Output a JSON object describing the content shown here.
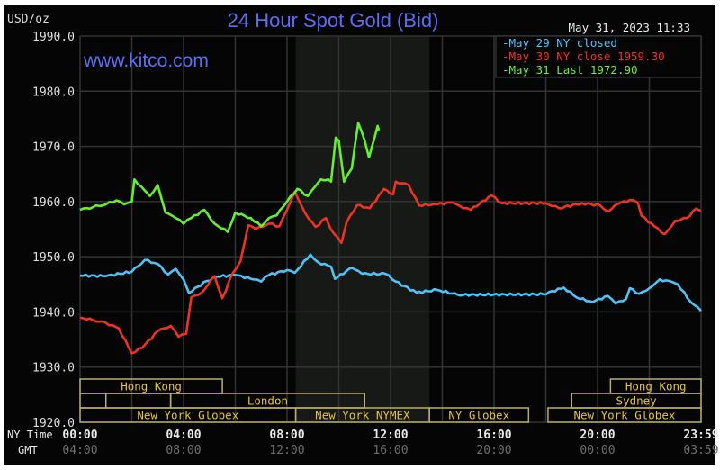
{
  "chart_data": {
    "type": "line",
    "title": "24 Hour Spot Gold (Bid)",
    "ylabel": "USD/oz",
    "watermark": "www.kitco.com",
    "timestamp": "May 31, 2023 11:33",
    "ylim": [
      1920,
      1990
    ],
    "yticks": [
      "1990.0",
      "1980.0",
      "1970.0",
      "1960.0",
      "1950.0",
      "1940.0",
      "1930.0",
      "1920.0"
    ],
    "xlim": [
      "00:00",
      "23:59"
    ],
    "x_row_labels": {
      "ny": "NY Time",
      "gmt": "GMT"
    },
    "xticks_ny": [
      "00:00",
      "04:00",
      "08:00",
      "12:00",
      "16:00",
      "20:00",
      "23:59"
    ],
    "xticks_gmt": [
      "04:00",
      "08:00",
      "12:00",
      "16:00",
      "20:00",
      "00:00",
      "03:59"
    ],
    "grid": true,
    "legend_position": "top-right",
    "highlight_period": [
      "08:20",
      "13:30"
    ],
    "series": [
      {
        "name": "May 29 NY closed",
        "legend": "May 29 NY closed",
        "color": "#4fc3f7",
        "points": [
          [
            "00:00",
            1946.6
          ],
          [
            "01:00",
            1946.5
          ],
          [
            "02:00",
            1947.3
          ],
          [
            "02:30",
            1949.4
          ],
          [
            "03:00",
            1948.7
          ],
          [
            "03:24",
            1946.8
          ],
          [
            "03:42",
            1947.8
          ],
          [
            "04:00",
            1945.9
          ],
          [
            "04:12",
            1943.5
          ],
          [
            "04:54",
            1945.6
          ],
          [
            "05:18",
            1946.4
          ],
          [
            "06:00",
            1946.7
          ],
          [
            "06:42",
            1945.9
          ],
          [
            "07:00",
            1945.5
          ],
          [
            "07:18",
            1946.7
          ],
          [
            "08:00",
            1947.6
          ],
          [
            "08:18",
            1947.1
          ],
          [
            "08:54",
            1950.4
          ],
          [
            "09:12",
            1949.0
          ],
          [
            "09:42",
            1948.2
          ],
          [
            "09:51",
            1946.0
          ],
          [
            "10:30",
            1948.0
          ],
          [
            "10:54",
            1946.9
          ],
          [
            "11:48",
            1946.9
          ],
          [
            "12:12",
            1945.5
          ],
          [
            "13:00",
            1943.5
          ],
          [
            "13:48",
            1944.0
          ],
          [
            "14:36",
            1943.1
          ],
          [
            "17:54",
            1943.2
          ],
          [
            "18:42",
            1944.4
          ],
          [
            "19:12",
            1942.6
          ],
          [
            "19:48",
            1941.8
          ],
          [
            "20:24",
            1942.9
          ],
          [
            "20:42",
            1941.5
          ],
          [
            "21:06",
            1942.3
          ],
          [
            "21:15",
            1944.3
          ],
          [
            "21:36",
            1943.3
          ],
          [
            "22:00",
            1944.3
          ],
          [
            "22:24",
            1945.9
          ],
          [
            "22:54",
            1945.4
          ],
          [
            "23:06",
            1945.0
          ],
          [
            "23:36",
            1941.8
          ],
          [
            "23:59",
            1940.2
          ]
        ]
      },
      {
        "name": "May 30 NY close 1959.30",
        "legend": "May 30 NY close 1959.30",
        "color": "#ee3322",
        "points": [
          [
            "00:00",
            1939.0
          ],
          [
            "00:30",
            1938.5
          ],
          [
            "01:00",
            1938.0
          ],
          [
            "01:30",
            1937.0
          ],
          [
            "02:00",
            1932.5
          ],
          [
            "02:24",
            1933.5
          ],
          [
            "03:00",
            1936.5
          ],
          [
            "03:30",
            1937.5
          ],
          [
            "03:48",
            1935.5
          ],
          [
            "04:06",
            1936.0
          ],
          [
            "04:18",
            1942.7
          ],
          [
            "04:42",
            1943.5
          ],
          [
            "05:12",
            1946.5
          ],
          [
            "05:30",
            1942.5
          ],
          [
            "05:54",
            1947.0
          ],
          [
            "06:12",
            1949.2
          ],
          [
            "06:30",
            1955.7
          ],
          [
            "06:48",
            1955.0
          ],
          [
            "07:18",
            1956.0
          ],
          [
            "07:42",
            1955.5
          ],
          [
            "08:00",
            1958.5
          ],
          [
            "08:18",
            1961.8
          ],
          [
            "08:42",
            1957.9
          ],
          [
            "09:06",
            1955.4
          ],
          [
            "09:30",
            1957.0
          ],
          [
            "09:42",
            1954.9
          ],
          [
            "10:06",
            1952.5
          ],
          [
            "10:18",
            1956.2
          ],
          [
            "10:42",
            1959.3
          ],
          [
            "11:12",
            1958.8
          ],
          [
            "11:45",
            1962.3
          ],
          [
            "12:06",
            1961.3
          ],
          [
            "12:12",
            1963.6
          ],
          [
            "12:42",
            1963.0
          ],
          [
            "13:06",
            1959.3
          ],
          [
            "13:42",
            1959.5
          ],
          [
            "14:24",
            1959.8
          ],
          [
            "14:48",
            1958.8
          ],
          [
            "15:06",
            1958.5
          ],
          [
            "15:54",
            1961.1
          ],
          [
            "16:18",
            1959.7
          ],
          [
            "18:00",
            1959.7
          ],
          [
            "18:30",
            1958.8
          ],
          [
            "19:24",
            1959.7
          ],
          [
            "20:06",
            1959.3
          ],
          [
            "20:24",
            1958.2
          ],
          [
            "20:48",
            1959.6
          ],
          [
            "21:15",
            1960.3
          ],
          [
            "21:33",
            1959.8
          ],
          [
            "21:42",
            1957.4
          ],
          [
            "22:12",
            1955.5
          ],
          [
            "22:36",
            1954.1
          ],
          [
            "23:00",
            1956.5
          ],
          [
            "23:27",
            1957.0
          ],
          [
            "23:48",
            1958.7
          ],
          [
            "23:59",
            1958.3
          ]
        ]
      },
      {
        "name": "May 31 Last 1972.90",
        "legend": "May 31 Last 1972.90",
        "color": "#66ee33",
        "points": [
          [
            "00:00",
            1958.5
          ],
          [
            "00:30",
            1959.0
          ],
          [
            "01:00",
            1959.5
          ],
          [
            "01:24",
            1960.2
          ],
          [
            "01:42",
            1959.5
          ],
          [
            "02:00",
            1960.0
          ],
          [
            "02:06",
            1964.0
          ],
          [
            "02:30",
            1962.0
          ],
          [
            "02:42",
            1961.0
          ],
          [
            "03:00",
            1963.0
          ],
          [
            "03:18",
            1958.0
          ],
          [
            "03:42",
            1957.0
          ],
          [
            "04:00",
            1956.0
          ],
          [
            "04:18",
            1957.0
          ],
          [
            "04:48",
            1958.5
          ],
          [
            "05:12",
            1956.0
          ],
          [
            "05:42",
            1954.5
          ],
          [
            "06:00",
            1958.0
          ],
          [
            "06:36",
            1957.0
          ],
          [
            "07:00",
            1955.5
          ],
          [
            "07:18",
            1957.0
          ],
          [
            "07:36",
            1957.5
          ],
          [
            "08:00",
            1960.0
          ],
          [
            "08:24",
            1962.3
          ],
          [
            "08:48",
            1961.0
          ],
          [
            "09:06",
            1962.8
          ],
          [
            "09:18",
            1964.0
          ],
          [
            "09:36",
            1964.0
          ],
          [
            "09:42",
            1963.6
          ],
          [
            "09:53",
            1971.6
          ],
          [
            "10:00",
            1971.0
          ],
          [
            "10:12",
            1963.6
          ],
          [
            "10:30",
            1966.0
          ],
          [
            "10:45",
            1974.2
          ],
          [
            "11:00",
            1971.0
          ],
          [
            "11:10",
            1968.0
          ],
          [
            "11:30",
            1973.7
          ],
          [
            "11:33",
            1972.9
          ]
        ]
      }
    ],
    "sessions": [
      {
        "label": "Hong Kong",
        "row": 0,
        "start": "00:00",
        "end": "05:30"
      },
      {
        "label": "Hong Kong",
        "row": 0,
        "start": "20:30",
        "end": "23:59"
      },
      {
        "label": "",
        "row": 1,
        "start": "00:00",
        "end": "01:00"
      },
      {
        "label": "",
        "row": 1,
        "start": "01:00",
        "end": "03:30"
      },
      {
        "label": "London",
        "row": 1,
        "start": "03:30",
        "end": "11:00"
      },
      {
        "label": "Sydney",
        "row": 1,
        "start": "19:00",
        "end": "23:59"
      },
      {
        "label": "New York Globex",
        "row": 2,
        "start": "00:00",
        "end": "08:20"
      },
      {
        "label": "New York NYMEX",
        "row": 2,
        "start": "08:20",
        "end": "13:30"
      },
      {
        "label": "NY Globex",
        "row": 2,
        "start": "13:30",
        "end": "17:20"
      },
      {
        "label": "New York Globex",
        "row": 2,
        "start": "18:05",
        "end": "23:59"
      }
    ]
  }
}
